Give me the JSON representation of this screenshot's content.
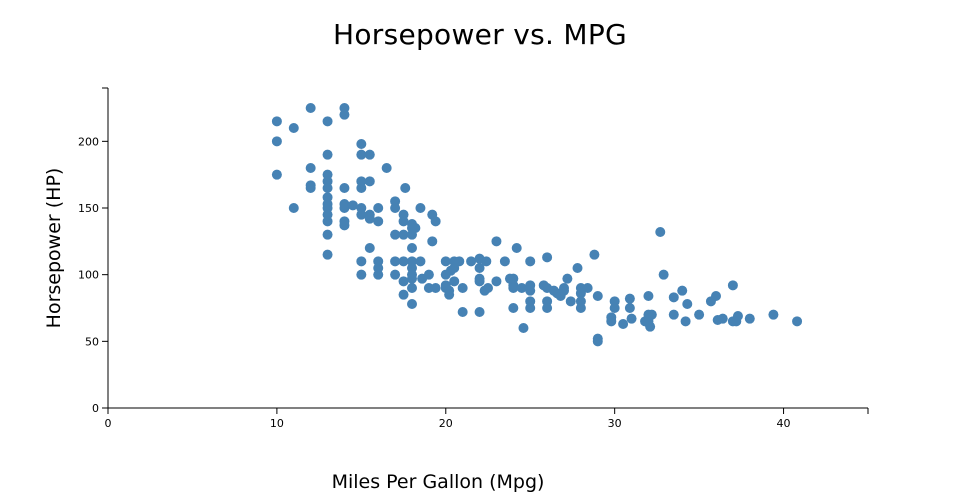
{
  "colors": {
    "point": "#4682b4",
    "axis": "#000000"
  },
  "chart_data": {
    "type": "scatter",
    "title": "Horsepower vs. MPG",
    "xlabel": "Miles Per Gallon (Mpg)",
    "ylabel": "Horsepower (HP)",
    "xlim": [
      0,
      45
    ],
    "ylim": [
      0,
      240
    ],
    "xticks": [
      0,
      10,
      20,
      30,
      40
    ],
    "yticks": [
      0,
      50,
      100,
      150,
      200
    ],
    "grid": false,
    "legend": "none",
    "points": [
      [
        10,
        215
      ],
      [
        10,
        200
      ],
      [
        10,
        175
      ],
      [
        11,
        210
      ],
      [
        11,
        150
      ],
      [
        12,
        225
      ],
      [
        12,
        180
      ],
      [
        12,
        167
      ],
      [
        12,
        165
      ],
      [
        13,
        215
      ],
      [
        13,
        190
      ],
      [
        13,
        175
      ],
      [
        13,
        170
      ],
      [
        13,
        165
      ],
      [
        13,
        158
      ],
      [
        13,
        153
      ],
      [
        13,
        150
      ],
      [
        13,
        145
      ],
      [
        13,
        140
      ],
      [
        13,
        130
      ],
      [
        13,
        115
      ],
      [
        14,
        225
      ],
      [
        14,
        220
      ],
      [
        14,
        165
      ],
      [
        14,
        153
      ],
      [
        14,
        150
      ],
      [
        14,
        140
      ],
      [
        14,
        137
      ],
      [
        14.5,
        152
      ],
      [
        15,
        198
      ],
      [
        15,
        190
      ],
      [
        15,
        170
      ],
      [
        15,
        165
      ],
      [
        15,
        150
      ],
      [
        15,
        145
      ],
      [
        15,
        110
      ],
      [
        15,
        100
      ],
      [
        15.5,
        190
      ],
      [
        15.5,
        170
      ],
      [
        15.5,
        145
      ],
      [
        15.5,
        142
      ],
      [
        15.5,
        120
      ],
      [
        16,
        150
      ],
      [
        16,
        140
      ],
      [
        16,
        110
      ],
      [
        16,
        105
      ],
      [
        16,
        100
      ],
      [
        16.5,
        180
      ],
      [
        17,
        155
      ],
      [
        17,
        150
      ],
      [
        17,
        130
      ],
      [
        17,
        110
      ],
      [
        17,
        100
      ],
      [
        17.5,
        145
      ],
      [
        17.5,
        140
      ],
      [
        17.5,
        130
      ],
      [
        17.5,
        110
      ],
      [
        17.5,
        95
      ],
      [
        17.5,
        85
      ],
      [
        17.6,
        165
      ],
      [
        18,
        138
      ],
      [
        18,
        135
      ],
      [
        18,
        130
      ],
      [
        18,
        120
      ],
      [
        18,
        110
      ],
      [
        18,
        105
      ],
      [
        18,
        100
      ],
      [
        18,
        97
      ],
      [
        18,
        90
      ],
      [
        18,
        78
      ],
      [
        18.2,
        135
      ],
      [
        18.5,
        150
      ],
      [
        18.5,
        110
      ],
      [
        18.6,
        97
      ],
      [
        19,
        100
      ],
      [
        19,
        90
      ],
      [
        19.2,
        145
      ],
      [
        19.2,
        125
      ],
      [
        19.4,
        140
      ],
      [
        19.4,
        90
      ],
      [
        20,
        110
      ],
      [
        20,
        100
      ],
      [
        20,
        92
      ],
      [
        20,
        90
      ],
      [
        20.2,
        88
      ],
      [
        20.3,
        103
      ],
      [
        20.2,
        85
      ],
      [
        20.5,
        110
      ],
      [
        20.5,
        105
      ],
      [
        20.5,
        95
      ],
      [
        20.8,
        110
      ],
      [
        21,
        90
      ],
      [
        21,
        72
      ],
      [
        21.5,
        110
      ],
      [
        22,
        112
      ],
      [
        22,
        105
      ],
      [
        22,
        97
      ],
      [
        22,
        95
      ],
      [
        22,
        72
      ],
      [
        22.4,
        110
      ],
      [
        22.3,
        88
      ],
      [
        22.5,
        90
      ],
      [
        23,
        125
      ],
      [
        23,
        95
      ],
      [
        23.5,
        110
      ],
      [
        23.8,
        97
      ],
      [
        24,
        97
      ],
      [
        24,
        92
      ],
      [
        24,
        90
      ],
      [
        24,
        75
      ],
      [
        24.2,
        120
      ],
      [
        24.5,
        90
      ],
      [
        24.6,
        60
      ],
      [
        25,
        110
      ],
      [
        25,
        92
      ],
      [
        25,
        88
      ],
      [
        25,
        80
      ],
      [
        25,
        75
      ],
      [
        25.8,
        92
      ],
      [
        26,
        113
      ],
      [
        26,
        90
      ],
      [
        26,
        80
      ],
      [
        26,
        75
      ],
      [
        26.4,
        88
      ],
      [
        26.6,
        86
      ],
      [
        26.8,
        84
      ],
      [
        27,
        90
      ],
      [
        27,
        88
      ],
      [
        27.2,
        97
      ],
      [
        27.4,
        80
      ],
      [
        27.8,
        105
      ],
      [
        28,
        90
      ],
      [
        28,
        86
      ],
      [
        28,
        80
      ],
      [
        28,
        75
      ],
      [
        28.4,
        90
      ],
      [
        28.8,
        115
      ],
      [
        29,
        84
      ],
      [
        29,
        52
      ],
      [
        29,
        50
      ],
      [
        29.8,
        68
      ],
      [
        29.8,
        65
      ],
      [
        30,
        80
      ],
      [
        30,
        75
      ],
      [
        30.5,
        63
      ],
      [
        30.9,
        82
      ],
      [
        30.9,
        75
      ],
      [
        31,
        67
      ],
      [
        31.8,
        65
      ],
      [
        32,
        84
      ],
      [
        32,
        70
      ],
      [
        32,
        65
      ],
      [
        32.1,
        61
      ],
      [
        32.2,
        70
      ],
      [
        32.7,
        132
      ],
      [
        32.9,
        100
      ],
      [
        33.5,
        70
      ],
      [
        33.5,
        83
      ],
      [
        34,
        88
      ],
      [
        34.2,
        65
      ],
      [
        34.3,
        78
      ],
      [
        35,
        70
      ],
      [
        35.7,
        80
      ],
      [
        36,
        84
      ],
      [
        36.1,
        66
      ],
      [
        36.4,
        67
      ],
      [
        37,
        92
      ],
      [
        37,
        65
      ],
      [
        37.2,
        65
      ],
      [
        37.3,
        69
      ],
      [
        38,
        67
      ],
      [
        39.4,
        70
      ],
      [
        40.8,
        65
      ]
    ]
  }
}
